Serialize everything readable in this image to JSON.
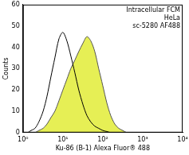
{
  "chart_data": {
    "type": "line",
    "x_label": "Ku-86 (B-1) Alexa Fluor® 488",
    "y_label": "Counts",
    "annotations": [
      "Intracellular FCM",
      "HeLa",
      "sc-5280 AF488"
    ],
    "log": "x",
    "grid": false,
    "x": [
      1,
      1.3,
      1.6,
      2,
      2.5,
      3.2,
      4,
      5,
      6.3,
      8,
      10,
      12.6,
      15.8,
      20,
      25,
      32,
      40,
      50,
      63,
      79,
      100,
      126,
      158,
      200,
      251,
      316,
      398,
      501,
      631,
      794,
      1000
    ],
    "series": [
      {
        "type": "line",
        "color": "#000000",
        "values": [
          0,
          0,
          1,
          2,
          5,
          10,
          17,
          26,
          35,
          44,
          47,
          43,
          36,
          28,
          20,
          13,
          8,
          5,
          3,
          2,
          1,
          0.5,
          0,
          0,
          0,
          0,
          0,
          0,
          0,
          0,
          0
        ]
      },
      {
        "type": "area",
        "color": "#e6ef55",
        "values": [
          0,
          0,
          0,
          0,
          1,
          2,
          4,
          7,
          10,
          15,
          20,
          25,
          30,
          34,
          38,
          42,
          45,
          43,
          38,
          30,
          22,
          14,
          8,
          4,
          2,
          1,
          0,
          0,
          0,
          0,
          0
        ]
      }
    ],
    "xlim": [
      1,
      10000
    ],
    "xticks": [
      {
        "value": 1,
        "label": "10⁰"
      },
      {
        "value": 10,
        "label": "10¹"
      },
      {
        "value": 100,
        "label": "10²"
      },
      {
        "value": 1000,
        "label": "10³"
      },
      {
        "value": 10000,
        "label": "10⁴"
      }
    ],
    "ylim": [
      0,
      60
    ],
    "yticks": [
      0,
      10,
      20,
      30,
      40,
      50,
      60
    ]
  }
}
